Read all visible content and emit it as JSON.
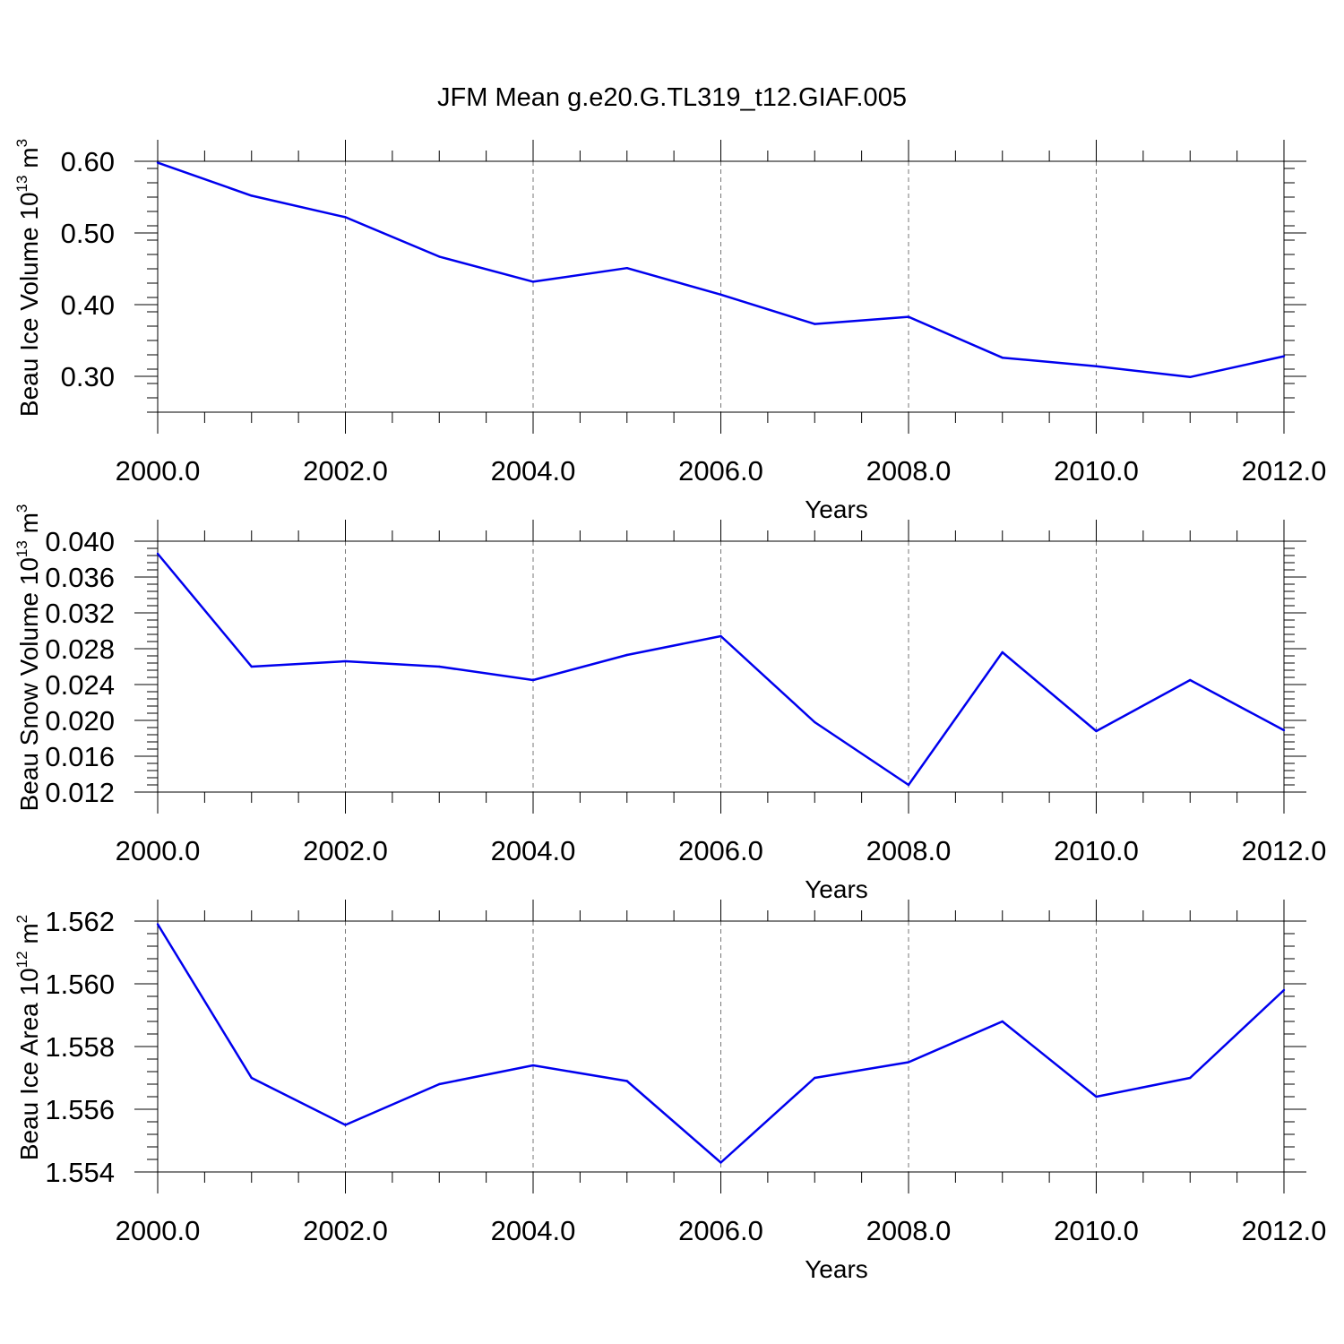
{
  "title": "JFM Mean g.e20.G.TL319_t12.GIAF.005",
  "line_color": "#0000ee",
  "chart_data": [
    {
      "type": "line",
      "xlabel": "Years",
      "ylabel": "Beau Ice Volume 10",
      "ylabel_sup": "13",
      "ylabel_unit": " m",
      "ylabel_unit_sup": "3",
      "xlim": [
        2000,
        2012
      ],
      "ylim": [
        0.25,
        0.6
      ],
      "ytick_values": [
        0.3,
        0.4,
        0.5,
        0.6
      ],
      "yticks": [
        "0.30",
        "0.40",
        "0.50",
        "0.60"
      ],
      "xtick_values": [
        2000,
        2002,
        2004,
        2006,
        2008,
        2010,
        2012
      ],
      "xticks": [
        "2000.0",
        "2002.0",
        "2004.0",
        "2006.0",
        "2008.0",
        "2010.0",
        "2012.0"
      ],
      "x": [
        2000,
        2001,
        2002,
        2003,
        2004,
        2005,
        2006,
        2007,
        2008,
        2009,
        2010,
        2011,
        2012
      ],
      "values": [
        0.598,
        0.552,
        0.522,
        0.467,
        0.432,
        0.451,
        0.414,
        0.373,
        0.383,
        0.326,
        0.314,
        0.299,
        0.328
      ],
      "grid": "vertical dashed"
    },
    {
      "type": "line",
      "xlabel": "Years",
      "ylabel": "Beau Snow Volume 10",
      "ylabel_sup": "13",
      "ylabel_unit": " m",
      "ylabel_unit_sup": "3",
      "xlim": [
        2000,
        2012
      ],
      "ylim": [
        0.012,
        0.04
      ],
      "ytick_values": [
        0.012,
        0.016,
        0.02,
        0.024,
        0.028,
        0.032,
        0.036,
        0.04
      ],
      "yticks": [
        "0.012",
        "0.016",
        "0.020",
        "0.024",
        "0.028",
        "0.032",
        "0.036",
        "0.040"
      ],
      "xtick_values": [
        2000,
        2002,
        2004,
        2006,
        2008,
        2010,
        2012
      ],
      "xticks": [
        "2000.0",
        "2002.0",
        "2004.0",
        "2006.0",
        "2008.0",
        "2010.0",
        "2012.0"
      ],
      "x": [
        2000,
        2001,
        2002,
        2003,
        2004,
        2005,
        2006,
        2007,
        2008,
        2009,
        2010,
        2011,
        2012
      ],
      "values": [
        0.0386,
        0.026,
        0.0266,
        0.026,
        0.0245,
        0.0273,
        0.0294,
        0.0198,
        0.0128,
        0.0276,
        0.0188,
        0.0245,
        0.0189
      ],
      "grid": "vertical dashed"
    },
    {
      "type": "line",
      "xlabel": "Years",
      "ylabel": "Beau Ice Area 10",
      "ylabel_sup": "12",
      "ylabel_unit": " m",
      "ylabel_unit_sup": "2",
      "xlim": [
        2000,
        2012
      ],
      "ylim": [
        1.554,
        1.562
      ],
      "ytick_values": [
        1.554,
        1.556,
        1.558,
        1.56,
        1.562
      ],
      "yticks": [
        "1.554",
        "1.556",
        "1.558",
        "1.560",
        "1.562"
      ],
      "xtick_values": [
        2000,
        2002,
        2004,
        2006,
        2008,
        2010,
        2012
      ],
      "xticks": [
        "2000.0",
        "2002.0",
        "2004.0",
        "2006.0",
        "2008.0",
        "2010.0",
        "2012.0"
      ],
      "x": [
        2000,
        2001,
        2002,
        2003,
        2004,
        2005,
        2006,
        2007,
        2008,
        2009,
        2010,
        2011,
        2012
      ],
      "values": [
        1.5619,
        1.557,
        1.5555,
        1.5568,
        1.5574,
        1.5569,
        1.5543,
        1.557,
        1.5575,
        1.5588,
        1.5564,
        1.557,
        1.5598
      ],
      "grid": "vertical dashed"
    }
  ]
}
